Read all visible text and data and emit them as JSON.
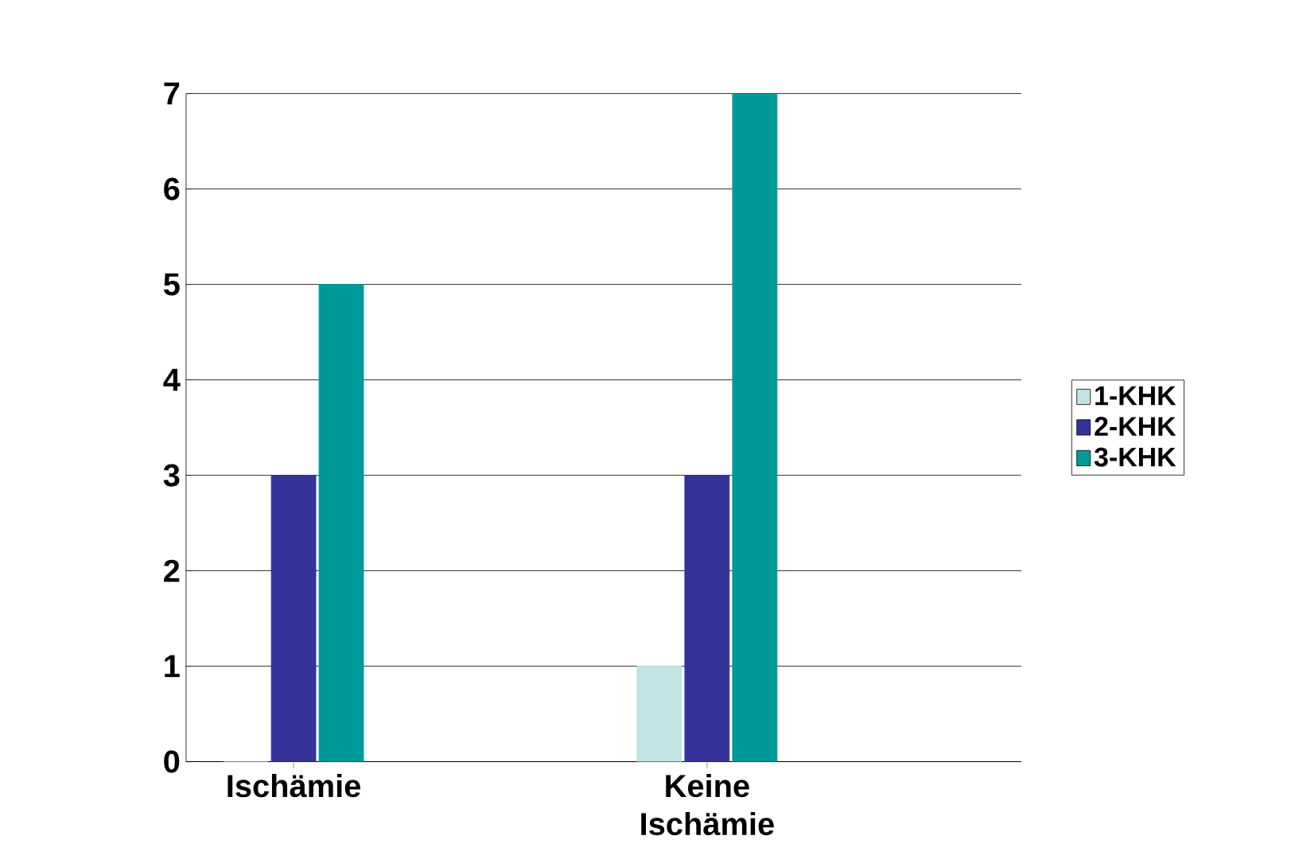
{
  "chart_data": {
    "type": "bar",
    "categories": [
      "Ischämie",
      "Keine Ischämie"
    ],
    "series": [
      {
        "name": "1-KHK",
        "color": "#c0e4e4",
        "values": [
          0,
          1
        ]
      },
      {
        "name": "2-KHK",
        "color": "#333399",
        "values": [
          3,
          3
        ]
      },
      {
        "name": "3-KHK",
        "color": "#009999",
        "values": [
          5,
          7
        ]
      }
    ],
    "ylim": [
      0,
      7
    ],
    "yticks": [
      0,
      1,
      2,
      3,
      4,
      5,
      6,
      7
    ],
    "grid": "y",
    "legend": "right"
  }
}
